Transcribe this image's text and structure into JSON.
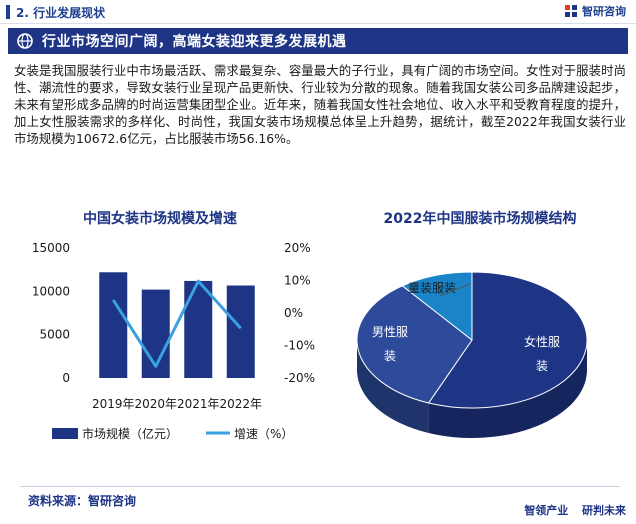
{
  "header": {
    "section_title": "2. 行业发展现状",
    "brand_name": "智研咨询",
    "icons": [
      "brand-logo-icon",
      "banner-globe-icon"
    ],
    "accent_color": "#1e3585"
  },
  "banner": {
    "title": "行业市场空间广阔，高端女装迎来更多发展机遇"
  },
  "intro": {
    "text": "女装是我国服装行业中市场最活跃、需求最复杂、容量最大的子行业，具有广阔的市场空间。女性对于服装时尚性、潮流性的要求，导致女装行业呈现产品更新快、行业较为分散的现象。随着我国女装公司多品牌建设起步，未来有望形成多品牌的时尚运营集团型企业。近年来，随着我国女性社会地位、收入水平和受教育程度的提升，加上女性服装需求的多样化、时尚性，我国女装市场规模总体呈上升趋势，据统计，截至2022年我国女装行业市场规模为10672.6亿元，占比服装市场56.16%。"
  },
  "chart_data": [
    {
      "type": "bar",
      "title": "中国女装市场规模及增速",
      "categories": [
        "2019年",
        "2020年",
        "2021年",
        "2022年"
      ],
      "series": [
        {
          "name": "市场规模（亿元）",
          "type": "bar",
          "axis": "left",
          "color": "#1e3585",
          "values": [
            12200,
            10200,
            11200,
            10672.6
          ]
        },
        {
          "name": "增速（%）",
          "type": "line",
          "axis": "right",
          "color": "#3aa0e0",
          "values": [
            4.0,
            -16.4,
            9.8,
            -4.7
          ]
        }
      ],
      "y_left": {
        "ticks": [
          "0",
          "5000",
          "10000",
          "15000"
        ],
        "ylim": [
          0,
          15000
        ]
      },
      "y_right": {
        "ticks": [
          "-20%",
          "-10%",
          "0%",
          "10%",
          "20%"
        ],
        "ylim": [
          -20,
          20
        ]
      },
      "legend_position": "bottom"
    },
    {
      "type": "pie",
      "title": "2022年中国服装市场规模结构",
      "style": "3d",
      "slices": [
        {
          "label": "女性服装",
          "value": 56.16,
          "color": "#1e3585"
        },
        {
          "label": "男性服装",
          "value": 33.5,
          "color": "#2e4a9a"
        },
        {
          "label": "童装服装",
          "value": 10.34,
          "color": "#1a84c8"
        }
      ]
    }
  ],
  "footer": {
    "source": "资料来源：智研咨询",
    "slogan_a": "智领产业",
    "slogan_b": "研判未来"
  }
}
